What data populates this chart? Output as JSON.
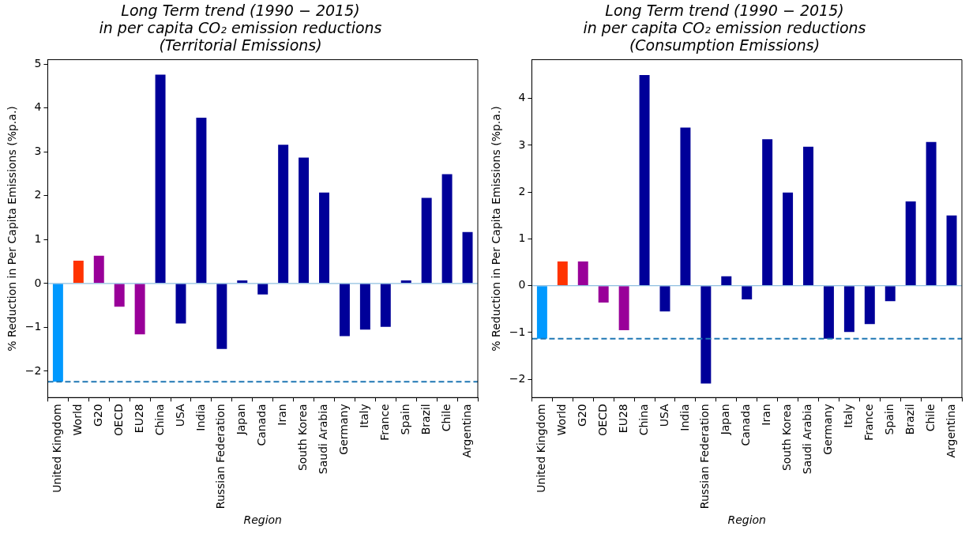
{
  "chart_data": [
    {
      "type": "bar",
      "title": "Long Term trend (1990 − 2015)\nin per capita CO₂ emission reductions\n(Territorial Emissions)",
      "xlabel": "Region",
      "ylabel": "% Reduction in Per Capita Emissions (%p.a.)",
      "categories": [
        "United Kingdom",
        "World",
        "G20",
        "OECD",
        "EU28",
        "China",
        "USA",
        "India",
        "Russian Federation",
        "Japan",
        "Canada",
        "Iran",
        "South Korea",
        "Saudi Arabia",
        "Germany",
        "Italy",
        "France",
        "Spain",
        "Brazil",
        "Chile",
        "Argentina"
      ],
      "values": [
        -2.24,
        0.52,
        0.63,
        -0.53,
        -1.16,
        4.76,
        -0.91,
        3.78,
        -1.49,
        0.07,
        -0.25,
        3.16,
        2.87,
        2.07,
        -1.2,
        -1.05,
        -0.99,
        0.07,
        1.95,
        2.49,
        1.17
      ],
      "colors": [
        "#0099ff",
        "#ff3300",
        "#990099",
        "#990099",
        "#990099",
        "#000099",
        "#000099",
        "#000099",
        "#000099",
        "#000099",
        "#000099",
        "#000099",
        "#000099",
        "#000099",
        "#000099",
        "#000099",
        "#000099",
        "#000099",
        "#000099",
        "#000099",
        "#000099"
      ],
      "ylim": [
        -2.6,
        5.1
      ],
      "yticks": [
        -2,
        -1,
        0,
        1,
        2,
        3,
        4,
        5
      ],
      "ref_lines": [
        {
          "axis": "y",
          "value": 0,
          "color": "#8fbfe0",
          "line_style": "solid"
        },
        {
          "axis": "y",
          "value": -2.24,
          "color": "#1f77b4",
          "line_style": "dashed"
        }
      ],
      "legend": false
    },
    {
      "type": "bar",
      "title": "Long Term trend (1990 − 2015)\nin per capita CO₂ emission reductions\n(Consumption Emissions)",
      "xlabel": "Region",
      "ylabel": "% Reduction in Per Capita Emissions (%p.a.)",
      "categories": [
        "United Kingdom",
        "World",
        "G20",
        "OECD",
        "EU28",
        "China",
        "USA",
        "India",
        "Russian Federation",
        "Japan",
        "Canada",
        "Iran",
        "South Korea",
        "Saudi Arabia",
        "Germany",
        "Italy",
        "France",
        "Spain",
        "Brazil",
        "Chile",
        "Argentina"
      ],
      "values": [
        -1.13,
        0.52,
        0.52,
        -0.36,
        -0.95,
        4.5,
        -0.55,
        3.38,
        -2.09,
        0.2,
        -0.29,
        3.13,
        1.99,
        2.97,
        -1.13,
        -0.99,
        -0.82,
        -0.33,
        1.8,
        3.07,
        1.5
      ],
      "colors": [
        "#0099ff",
        "#ff3300",
        "#990099",
        "#990099",
        "#990099",
        "#000099",
        "#000099",
        "#000099",
        "#000099",
        "#000099",
        "#000099",
        "#000099",
        "#000099",
        "#000099",
        "#000099",
        "#000099",
        "#000099",
        "#000099",
        "#000099",
        "#000099",
        "#000099"
      ],
      "ylim": [
        -2.39,
        4.83
      ],
      "yticks": [
        -2,
        -1,
        0,
        1,
        2,
        3,
        4
      ],
      "ref_lines": [
        {
          "axis": "y",
          "value": 0,
          "color": "#8fbfe0",
          "line_style": "solid"
        },
        {
          "axis": "y",
          "value": -1.13,
          "color": "#1f77b4",
          "line_style": "dashed"
        }
      ],
      "legend": false
    }
  ]
}
